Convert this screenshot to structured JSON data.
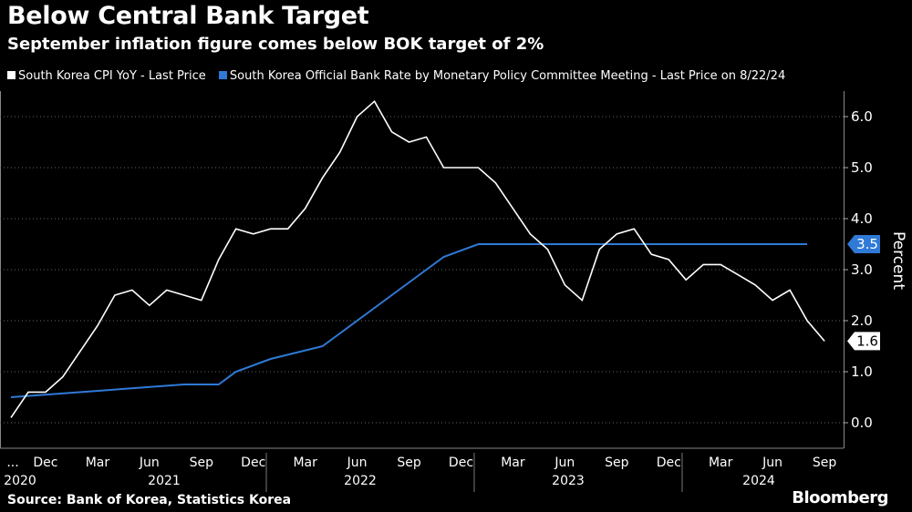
{
  "header": {
    "title": "Below Central Bank Target",
    "subtitle": "September inflation figure comes below BOK target of 2%"
  },
  "footer": {
    "source": "Source: Bank of Korea, Statistics Korea",
    "brand": "Bloomberg"
  },
  "colors": {
    "background": "#000000",
    "cpi": "#ffffff",
    "rate": "#2f7ad6",
    "grid": "#666666"
  },
  "chart_data": {
    "type": "line",
    "ylabel": "Percent",
    "ylim": [
      -0.5,
      6.5
    ],
    "yticks": [
      "0.0",
      "1.0",
      "2.0",
      "3.0",
      "4.0",
      "5.0",
      "6.0"
    ],
    "grid": "horizontal dotted",
    "legend_position": "top",
    "x_month_ticks": [
      "...",
      "Dec",
      "Mar",
      "Jun",
      "Sep",
      "Dec",
      "Mar",
      "Jun",
      "Sep",
      "Dec",
      "Mar",
      "Jun",
      "Sep",
      "Dec",
      "Mar",
      "Jun",
      "Sep"
    ],
    "x_year_labels": [
      "2020",
      "2021",
      "2022",
      "2023",
      "2024"
    ],
    "series": [
      {
        "name": "South Korea CPI YoY - Last Price",
        "x": [
          "2020-10",
          "2020-11",
          "2020-12",
          "2021-01",
          "2021-02",
          "2021-03",
          "2021-04",
          "2021-05",
          "2021-06",
          "2021-07",
          "2021-08",
          "2021-09",
          "2021-10",
          "2021-11",
          "2021-12",
          "2022-01",
          "2022-02",
          "2022-03",
          "2022-04",
          "2022-05",
          "2022-06",
          "2022-07",
          "2022-08",
          "2022-09",
          "2022-10",
          "2022-11",
          "2022-12",
          "2023-01",
          "2023-02",
          "2023-03",
          "2023-04",
          "2023-05",
          "2023-06",
          "2023-07",
          "2023-08",
          "2023-09",
          "2023-10",
          "2023-11",
          "2023-12",
          "2024-01",
          "2024-02",
          "2024-03",
          "2024-04",
          "2024-05",
          "2024-06",
          "2024-07",
          "2024-08",
          "2024-09"
        ],
        "values": [
          0.1,
          0.6,
          0.6,
          0.9,
          1.4,
          1.9,
          2.5,
          2.6,
          2.3,
          2.6,
          2.5,
          2.4,
          3.2,
          3.8,
          3.7,
          3.8,
          3.8,
          4.2,
          4.8,
          5.3,
          6.0,
          6.3,
          5.7,
          5.5,
          5.6,
          5.0,
          5.0,
          5.0,
          4.7,
          4.2,
          3.7,
          3.4,
          2.7,
          2.4,
          3.4,
          3.7,
          3.8,
          3.3,
          3.2,
          2.8,
          3.1,
          3.1,
          2.9,
          2.7,
          2.4,
          2.6,
          2.0,
          1.6
        ],
        "last_label": "1.6"
      },
      {
        "name": "South Korea Official Bank Rate by Monetary Policy Committee Meeting - Last Price on 8/22/24",
        "x": [
          "2020-10",
          "2021-08",
          "2021-10",
          "2021-11",
          "2022-01",
          "2022-04",
          "2022-05",
          "2022-07",
          "2022-08",
          "2022-10",
          "2022-11",
          "2023-01",
          "2024-08"
        ],
        "values": [
          0.5,
          0.75,
          0.75,
          1.0,
          1.25,
          1.5,
          1.75,
          2.25,
          2.5,
          3.0,
          3.25,
          3.5,
          3.5
        ],
        "step": true,
        "last_label": "3.5"
      }
    ]
  }
}
